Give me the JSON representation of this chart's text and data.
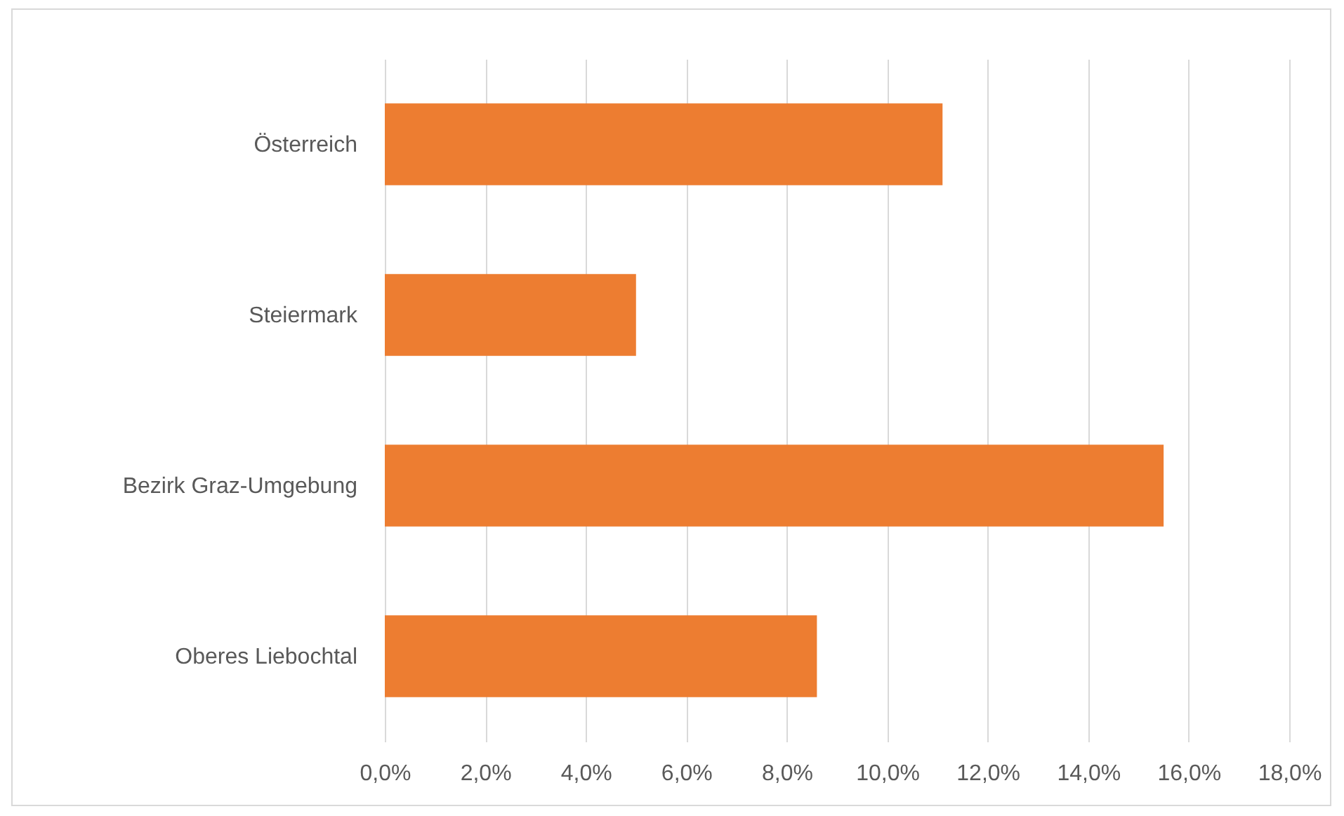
{
  "chart_data": {
    "type": "bar",
    "orientation": "horizontal",
    "categories": [
      "Österreich",
      "Steiermark",
      "Bezirk Graz-Umgebung",
      "Oberes Liebochtal"
    ],
    "values": [
      11.1,
      5.0,
      15.5,
      8.6
    ],
    "color": "#ed7d31",
    "xlim": [
      0,
      18
    ],
    "xticks": [
      {
        "value": 0,
        "label": "0,0%"
      },
      {
        "value": 2,
        "label": "2,0%"
      },
      {
        "value": 4,
        "label": "4,0%"
      },
      {
        "value": 6,
        "label": "6,0%"
      },
      {
        "value": 8,
        "label": "8,0%"
      },
      {
        "value": 10,
        "label": "10,0%"
      },
      {
        "value": 12,
        "label": "12,0%"
      },
      {
        "value": 14,
        "label": "14,0%"
      },
      {
        "value": 16,
        "label": "16,0%"
      },
      {
        "value": 18,
        "label": "18,0%"
      }
    ],
    "grid": "x"
  }
}
